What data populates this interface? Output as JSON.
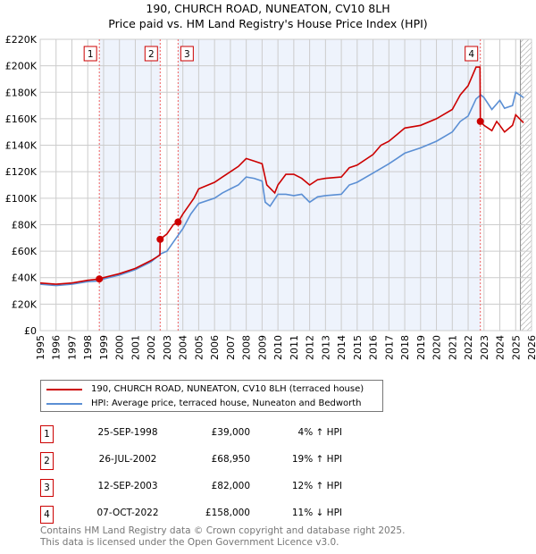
{
  "chart_data": {
    "type": "line",
    "title": "190, CHURCH ROAD, NUNEATON, CV10 8LH",
    "subtitle": "Price paid vs. HM Land Registry's House Price Index (HPI)",
    "xlim": [
      1995,
      2026
    ],
    "ylim": [
      0,
      220000
    ],
    "x_ticks": [
      "1995",
      "1996",
      "1997",
      "1998",
      "1999",
      "2000",
      "2001",
      "2002",
      "2003",
      "2004",
      "2005",
      "2006",
      "2007",
      "2008",
      "2009",
      "2010",
      "2011",
      "2012",
      "2013",
      "2014",
      "2015",
      "2016",
      "2017",
      "2018",
      "2019",
      "2020",
      "2021",
      "2022",
      "2023",
      "2024",
      "2025",
      "2026"
    ],
    "y_ticks": [
      "£0",
      "£20K",
      "£40K",
      "£60K",
      "£80K",
      "£100K",
      "£120K",
      "£140K",
      "£160K",
      "£180K",
      "£200K",
      "£220K"
    ],
    "grid": true,
    "colors": {
      "property": "#cc0000",
      "hpi": "#5b8fd4",
      "shade": "#eef3fc"
    },
    "series": [
      {
        "name": "190, CHURCH ROAD, NUNEATON, CV10 8LH (terraced house)",
        "points": [
          [
            1995,
            36
          ],
          [
            1996,
            35
          ],
          [
            1997,
            36
          ],
          [
            1998,
            38
          ],
          [
            1998.73,
            39
          ],
          [
            1999,
            40
          ],
          [
            2000,
            43
          ],
          [
            2001,
            47
          ],
          [
            2002,
            53
          ],
          [
            2002.55,
            57
          ],
          [
            2002.57,
            68.95
          ],
          [
            2003,
            73
          ],
          [
            2003.4,
            80
          ],
          [
            2003.7,
            82
          ],
          [
            2004,
            88
          ],
          [
            2004.7,
            100
          ],
          [
            2005,
            107
          ],
          [
            2006,
            112
          ],
          [
            2006.5,
            116
          ],
          [
            2007,
            120
          ],
          [
            2007.5,
            124
          ],
          [
            2008,
            130
          ],
          [
            2008.5,
            128
          ],
          [
            2009,
            126
          ],
          [
            2009.3,
            110
          ],
          [
            2009.8,
            104
          ],
          [
            2010,
            110
          ],
          [
            2010.5,
            118
          ],
          [
            2011,
            118
          ],
          [
            2011.5,
            115
          ],
          [
            2012,
            110
          ],
          [
            2012.5,
            114
          ],
          [
            2013,
            115
          ],
          [
            2014,
            116
          ],
          [
            2014.5,
            123
          ],
          [
            2015,
            125
          ],
          [
            2016,
            133
          ],
          [
            2016.5,
            140
          ],
          [
            2017,
            143
          ],
          [
            2017.5,
            148
          ],
          [
            2018,
            153
          ],
          [
            2019,
            155
          ],
          [
            2020,
            160
          ],
          [
            2021,
            167
          ],
          [
            2021.5,
            178
          ],
          [
            2022,
            185
          ],
          [
            2022.5,
            199
          ],
          [
            2022.75,
            199
          ],
          [
            2022.77,
            158
          ],
          [
            2023,
            155
          ],
          [
            2023.5,
            151
          ],
          [
            2023.8,
            158
          ],
          [
            2024,
            155
          ],
          [
            2024.3,
            150
          ],
          [
            2024.8,
            155
          ],
          [
            2025,
            163
          ],
          [
            2025.5,
            157
          ]
        ]
      },
      {
        "name": "HPI: Average price, terraced house, Nuneaton and Bedworth",
        "points": [
          [
            1995,
            35
          ],
          [
            1996,
            34
          ],
          [
            1997,
            35
          ],
          [
            1998,
            37
          ],
          [
            1998.7,
            37.5
          ],
          [
            1999,
            39
          ],
          [
            2000,
            42
          ],
          [
            2001,
            46
          ],
          [
            2002,
            52
          ],
          [
            2002.6,
            58
          ],
          [
            2003,
            60
          ],
          [
            2003.7,
            72
          ],
          [
            2004,
            77
          ],
          [
            2004.5,
            88
          ],
          [
            2005,
            96
          ],
          [
            2006,
            100
          ],
          [
            2006.5,
            104
          ],
          [
            2007,
            107
          ],
          [
            2007.5,
            110
          ],
          [
            2008,
            116
          ],
          [
            2008.5,
            115
          ],
          [
            2009,
            113
          ],
          [
            2009.2,
            97
          ],
          [
            2009.5,
            94
          ],
          [
            2010,
            103
          ],
          [
            2010.5,
            103
          ],
          [
            2011,
            102
          ],
          [
            2011.5,
            103
          ],
          [
            2012,
            97
          ],
          [
            2012.5,
            101
          ],
          [
            2013,
            102
          ],
          [
            2014,
            103
          ],
          [
            2014.5,
            110
          ],
          [
            2015,
            112
          ],
          [
            2016,
            119
          ],
          [
            2017,
            126
          ],
          [
            2017.5,
            130
          ],
          [
            2018,
            134
          ],
          [
            2019,
            138
          ],
          [
            2020,
            143
          ],
          [
            2021,
            150
          ],
          [
            2021.5,
            158
          ],
          [
            2022,
            162
          ],
          [
            2022.5,
            175
          ],
          [
            2022.8,
            178
          ],
          [
            2023,
            176
          ],
          [
            2023.5,
            167
          ],
          [
            2024,
            174
          ],
          [
            2024.3,
            168
          ],
          [
            2024.8,
            170
          ],
          [
            2025,
            180
          ],
          [
            2025.5,
            176
          ]
        ]
      }
    ],
    "sales": [
      {
        "label": "1",
        "x": 1998.73,
        "y": 39
      },
      {
        "label": "2",
        "x": 2002.57,
        "y": 68.95
      },
      {
        "label": "3",
        "x": 2003.7,
        "y": 82
      },
      {
        "label": "4",
        "x": 2022.77,
        "y": 158
      }
    ],
    "hatched_from": 2025.3
  },
  "legend": {
    "property": "190, CHURCH ROAD, NUNEATON, CV10 8LH (terraced house)",
    "hpi": "HPI: Average price, terraced house, Nuneaton and Bedworth"
  },
  "transactions": [
    {
      "num": "1",
      "date": "25-SEP-1998",
      "price": "£39,000",
      "hpi": "4% ↑ HPI"
    },
    {
      "num": "2",
      "date": "26-JUL-2002",
      "price": "£68,950",
      "hpi": "19% ↑ HPI"
    },
    {
      "num": "3",
      "date": "12-SEP-2003",
      "price": "£82,000",
      "hpi": "12% ↑ HPI"
    },
    {
      "num": "4",
      "date": "07-OCT-2022",
      "price": "£158,000",
      "hpi": "11% ↓ HPI"
    }
  ],
  "footer": {
    "line1": "Contains HM Land Registry data © Crown copyright and database right 2025.",
    "line2": "This data is licensed under the Open Government Licence v3.0."
  }
}
